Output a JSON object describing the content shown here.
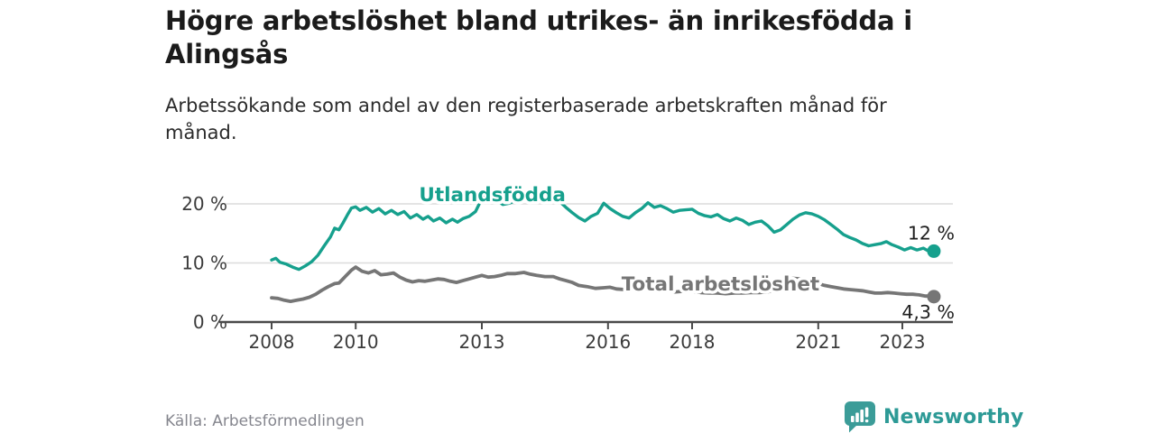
{
  "header": {
    "title": "Högre arbetslöshet bland utrikes- än inrikesfödda i Alingsås",
    "subtitle": "Arbetssökande som andel av den registerbaserade arbetskraften månad för månad."
  },
  "footer": {
    "source": "Källa: Arbetsförmedlingen",
    "brand_name": "Newsworthy",
    "brand_icon": "bar-chart-speech-bubble-icon"
  },
  "colors": {
    "accent_teal": "#16a08d",
    "line_gray": "#767676",
    "logo_teal": "#3b9c98",
    "brand_text_teal": "#2d9a96",
    "gridline": "#dcdcdc",
    "axis": "#4a4a4a",
    "tick_text": "#3b3b3b",
    "end_label_text": "#1f1f1f"
  },
  "chart_data": {
    "type": "line",
    "title": "Högre arbetslöshet bland utrikes- än inrikesfödda i Alingsås",
    "subtitle": "Arbetssökande som andel av den registerbaserade arbetskraften månad för månad.",
    "unit": "percent of registered labour force",
    "grid": "horizontal",
    "x_axis": {
      "ticks": [
        2008,
        2010,
        2013,
        2016,
        2018,
        2021,
        2023
      ],
      "min": 2008,
      "max": 2024.3
    },
    "y_axis": {
      "ticks": [
        0,
        10,
        20
      ],
      "tick_labels": [
        "0 %",
        "10 %",
        "20 %"
      ],
      "min": 0,
      "max": 23.5
    },
    "series": [
      {
        "name": "Utlandsfödda",
        "color": "#16a08d",
        "end_value_label": "12 %",
        "end_value": 12.0,
        "points": [
          [
            2008.0,
            10.5
          ],
          [
            2008.1,
            10.8
          ],
          [
            2008.2,
            10.1
          ],
          [
            2008.35,
            9.8
          ],
          [
            2008.5,
            9.3
          ],
          [
            2008.65,
            8.9
          ],
          [
            2008.8,
            9.5
          ],
          [
            2008.95,
            10.2
          ],
          [
            2009.1,
            11.3
          ],
          [
            2009.25,
            12.9
          ],
          [
            2009.4,
            14.4
          ],
          [
            2009.5,
            15.9
          ],
          [
            2009.6,
            15.6
          ],
          [
            2009.7,
            16.8
          ],
          [
            2009.8,
            18.1
          ],
          [
            2009.9,
            19.3
          ],
          [
            2010.0,
            19.5
          ],
          [
            2010.1,
            18.9
          ],
          [
            2010.25,
            19.4
          ],
          [
            2010.4,
            18.6
          ],
          [
            2010.55,
            19.2
          ],
          [
            2010.7,
            18.3
          ],
          [
            2010.85,
            18.9
          ],
          [
            2011.0,
            18.2
          ],
          [
            2011.15,
            18.7
          ],
          [
            2011.3,
            17.6
          ],
          [
            2011.45,
            18.2
          ],
          [
            2011.6,
            17.4
          ],
          [
            2011.72,
            17.9
          ],
          [
            2011.85,
            17.1
          ],
          [
            2012.0,
            17.6
          ],
          [
            2012.15,
            16.8
          ],
          [
            2012.3,
            17.4
          ],
          [
            2012.42,
            16.9
          ],
          [
            2012.55,
            17.5
          ],
          [
            2012.7,
            17.9
          ],
          [
            2012.85,
            18.7
          ],
          [
            2013.0,
            20.9
          ],
          [
            2013.1,
            23.0
          ],
          [
            2013.2,
            21.4
          ],
          [
            2013.35,
            20.6
          ],
          [
            2013.5,
            19.9
          ],
          [
            2013.65,
            20.1
          ],
          [
            2013.8,
            20.5
          ],
          [
            2013.95,
            20.9
          ],
          [
            2014.1,
            21.1
          ],
          [
            2014.25,
            20.6
          ],
          [
            2014.4,
            20.9
          ],
          [
            2014.55,
            20.5
          ],
          [
            2014.7,
            20.6
          ],
          [
            2014.85,
            20.4
          ],
          [
            2015.0,
            19.4
          ],
          [
            2015.15,
            18.5
          ],
          [
            2015.3,
            17.7
          ],
          [
            2015.45,
            17.1
          ],
          [
            2015.6,
            17.9
          ],
          [
            2015.75,
            18.4
          ],
          [
            2015.9,
            20.1
          ],
          [
            2016.05,
            19.2
          ],
          [
            2016.2,
            18.5
          ],
          [
            2016.35,
            17.9
          ],
          [
            2016.5,
            17.6
          ],
          [
            2016.65,
            18.5
          ],
          [
            2016.8,
            19.2
          ],
          [
            2016.95,
            20.2
          ],
          [
            2017.1,
            19.4
          ],
          [
            2017.25,
            19.7
          ],
          [
            2017.4,
            19.2
          ],
          [
            2017.55,
            18.6
          ],
          [
            2017.7,
            18.9
          ],
          [
            2017.85,
            19.0
          ],
          [
            2018.0,
            19.1
          ],
          [
            2018.15,
            18.4
          ],
          [
            2018.3,
            18.0
          ],
          [
            2018.45,
            17.8
          ],
          [
            2018.6,
            18.2
          ],
          [
            2018.75,
            17.5
          ],
          [
            2018.9,
            17.1
          ],
          [
            2019.05,
            17.6
          ],
          [
            2019.2,
            17.2
          ],
          [
            2019.35,
            16.5
          ],
          [
            2019.5,
            16.9
          ],
          [
            2019.65,
            17.1
          ],
          [
            2019.8,
            16.3
          ],
          [
            2019.95,
            15.2
          ],
          [
            2020.1,
            15.6
          ],
          [
            2020.25,
            16.5
          ],
          [
            2020.4,
            17.4
          ],
          [
            2020.55,
            18.1
          ],
          [
            2020.7,
            18.5
          ],
          [
            2020.85,
            18.3
          ],
          [
            2021.0,
            17.9
          ],
          [
            2021.15,
            17.3
          ],
          [
            2021.3,
            16.5
          ],
          [
            2021.45,
            15.7
          ],
          [
            2021.6,
            14.8
          ],
          [
            2021.75,
            14.3
          ],
          [
            2021.9,
            13.9
          ],
          [
            2022.05,
            13.3
          ],
          [
            2022.2,
            12.9
          ],
          [
            2022.35,
            13.1
          ],
          [
            2022.5,
            13.3
          ],
          [
            2022.62,
            13.6
          ],
          [
            2022.75,
            13.1
          ],
          [
            2022.9,
            12.7
          ],
          [
            2023.05,
            12.2
          ],
          [
            2023.2,
            12.6
          ],
          [
            2023.35,
            12.2
          ],
          [
            2023.5,
            12.5
          ],
          [
            2023.6,
            12.1
          ],
          [
            2023.75,
            12.0
          ]
        ]
      },
      {
        "name": "Total arbetslöshet",
        "color": "#767676",
        "end_value_label": "4,3 %",
        "end_value": 4.3,
        "points": [
          [
            2008.0,
            4.1
          ],
          [
            2008.15,
            4.0
          ],
          [
            2008.3,
            3.7
          ],
          [
            2008.45,
            3.5
          ],
          [
            2008.6,
            3.7
          ],
          [
            2008.75,
            3.9
          ],
          [
            2008.9,
            4.2
          ],
          [
            2009.05,
            4.7
          ],
          [
            2009.2,
            5.4
          ],
          [
            2009.35,
            6.0
          ],
          [
            2009.5,
            6.5
          ],
          [
            2009.6,
            6.6
          ],
          [
            2009.75,
            7.7
          ],
          [
            2009.9,
            8.8
          ],
          [
            2010.0,
            9.3
          ],
          [
            2010.15,
            8.6
          ],
          [
            2010.3,
            8.3
          ],
          [
            2010.45,
            8.7
          ],
          [
            2010.6,
            8.0
          ],
          [
            2010.75,
            8.1
          ],
          [
            2010.9,
            8.3
          ],
          [
            2011.05,
            7.6
          ],
          [
            2011.2,
            7.1
          ],
          [
            2011.35,
            6.8
          ],
          [
            2011.5,
            7.0
          ],
          [
            2011.65,
            6.9
          ],
          [
            2011.8,
            7.1
          ],
          [
            2011.95,
            7.3
          ],
          [
            2012.1,
            7.2
          ],
          [
            2012.25,
            6.9
          ],
          [
            2012.4,
            6.7
          ],
          [
            2012.55,
            7.0
          ],
          [
            2012.7,
            7.3
          ],
          [
            2012.85,
            7.6
          ],
          [
            2013.0,
            7.9
          ],
          [
            2013.15,
            7.6
          ],
          [
            2013.3,
            7.7
          ],
          [
            2013.45,
            7.9
          ],
          [
            2013.6,
            8.2
          ],
          [
            2013.8,
            8.2
          ],
          [
            2014.0,
            8.4
          ],
          [
            2014.15,
            8.1
          ],
          [
            2014.3,
            7.9
          ],
          [
            2014.5,
            7.7
          ],
          [
            2014.7,
            7.7
          ],
          [
            2014.85,
            7.3
          ],
          [
            2015.0,
            7.0
          ],
          [
            2015.15,
            6.7
          ],
          [
            2015.3,
            6.2
          ],
          [
            2015.5,
            6.0
          ],
          [
            2015.7,
            5.7
          ],
          [
            2015.9,
            5.8
          ],
          [
            2016.05,
            5.9
          ],
          [
            2016.2,
            5.6
          ],
          [
            2016.4,
            5.5
          ],
          [
            2016.6,
            5.4
          ],
          [
            2016.8,
            5.5
          ],
          [
            2017.0,
            5.6
          ],
          [
            2017.2,
            5.4
          ],
          [
            2017.4,
            5.2
          ],
          [
            2017.6,
            5.1
          ],
          [
            2017.8,
            5.2
          ],
          [
            2018.0,
            5.2
          ],
          [
            2018.2,
            5.0
          ],
          [
            2018.4,
            4.9
          ],
          [
            2018.6,
            4.9
          ],
          [
            2018.8,
            4.8
          ],
          [
            2019.0,
            4.9
          ],
          [
            2019.2,
            4.9
          ],
          [
            2019.4,
            5.0
          ],
          [
            2019.6,
            5.0
          ],
          [
            2019.8,
            5.1
          ],
          [
            2019.95,
            5.4
          ],
          [
            2020.1,
            6.3
          ],
          [
            2020.25,
            7.1
          ],
          [
            2020.4,
            7.4
          ],
          [
            2020.55,
            7.3
          ],
          [
            2020.7,
            7.2
          ],
          [
            2020.85,
            6.9
          ],
          [
            2021.0,
            6.5
          ],
          [
            2021.15,
            6.2
          ],
          [
            2021.3,
            6.0
          ],
          [
            2021.45,
            5.8
          ],
          [
            2021.6,
            5.6
          ],
          [
            2021.75,
            5.5
          ],
          [
            2021.9,
            5.4
          ],
          [
            2022.05,
            5.3
          ],
          [
            2022.2,
            5.1
          ],
          [
            2022.35,
            4.9
          ],
          [
            2022.5,
            4.9
          ],
          [
            2022.65,
            5.0
          ],
          [
            2022.8,
            4.9
          ],
          [
            2022.95,
            4.8
          ],
          [
            2023.1,
            4.7
          ],
          [
            2023.25,
            4.7
          ],
          [
            2023.4,
            4.6
          ],
          [
            2023.55,
            4.4
          ],
          [
            2023.65,
            4.4
          ],
          [
            2023.75,
            4.3
          ]
        ]
      }
    ]
  }
}
